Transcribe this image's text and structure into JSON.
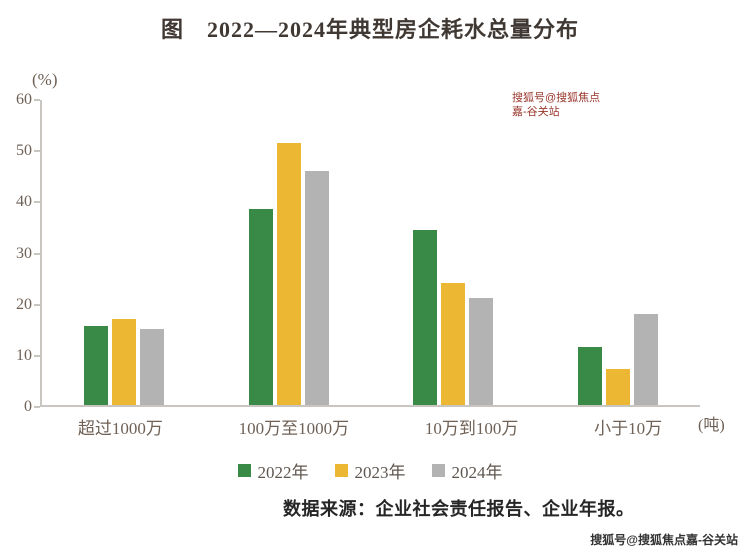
{
  "title": "图　2022—2024年典型房企耗水总量分布",
  "chart_data": {
    "type": "bar",
    "title": "图　2022—2024年典型房企耗水总量分布",
    "y_unit": "(%)",
    "x_unit": "(吨)",
    "ylabel": "",
    "xlabel": "",
    "ylim": [
      0,
      60
    ],
    "yticks": [
      0,
      10,
      20,
      30,
      40,
      50,
      60
    ],
    "grid": false,
    "legend_position": "bottom",
    "categories": [
      "超过1000万",
      "100万至1000万",
      "10万到100万",
      "小于10万"
    ],
    "series": [
      {
        "name": "2022年",
        "color": "#3a8a47",
        "values": [
          15.5,
          38.5,
          34.5,
          11.5
        ]
      },
      {
        "name": "2023年",
        "color": "#ecb732",
        "values": [
          17,
          51.5,
          24,
          7
        ]
      },
      {
        "name": "2024年",
        "color": "#b3b3b3",
        "values": [
          15,
          46,
          21,
          18
        ]
      }
    ]
  },
  "source": "数据来源：企业社会责任报告、企业年报。",
  "watermark_top": "搜狐号@搜狐焦点嘉-谷关站",
  "watermark_bottom": "搜狐号@搜狐焦点嘉-谷关站"
}
